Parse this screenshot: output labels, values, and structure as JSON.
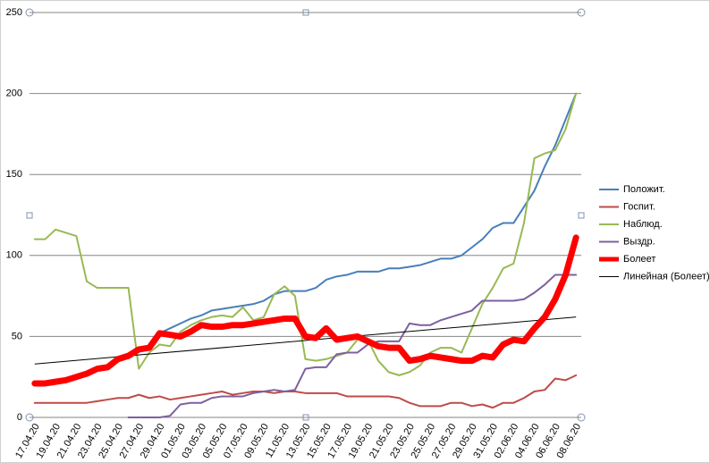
{
  "chart_data": {
    "type": "line",
    "categories": [
      "17.04.20",
      null,
      "19.04.20",
      null,
      "21.04.20",
      null,
      "23.04.20",
      null,
      "25.04.20",
      null,
      "27.04.20",
      null,
      "29.04.20",
      null,
      "01.05.20",
      null,
      "03.05.20",
      null,
      "05.05.20",
      null,
      "07.05.20",
      null,
      "09.05.20",
      null,
      "11.05.20",
      null,
      "13.05.20",
      null,
      "15.05.20",
      null,
      "17.05.20",
      null,
      "19.05.20",
      null,
      "21.05.20",
      null,
      "23.05.20",
      null,
      "25.05.20",
      null,
      "27.05.20",
      null,
      "29.05.20",
      null,
      "31.05.20",
      null,
      "02.06.20",
      null,
      "04.06.20",
      null,
      "06.06.20",
      null,
      "08.06.20"
    ],
    "series": [
      {
        "name": "Положит.",
        "color": "#4a7ebb",
        "width": 2,
        "values": [
          21,
          21,
          22,
          23,
          25,
          27,
          30,
          31,
          36,
          38,
          42,
          43,
          52,
          55,
          58,
          61,
          63,
          66,
          67,
          68,
          69,
          70,
          72,
          76,
          78,
          78,
          78,
          80,
          85,
          87,
          88,
          90,
          90,
          90,
          92,
          92,
          93,
          94,
          96,
          98,
          98,
          100,
          105,
          110,
          117,
          120,
          120,
          130,
          140,
          155,
          168,
          184,
          200
        ]
      },
      {
        "name": "Госпит.",
        "color": "#be4b48",
        "width": 2,
        "values": [
          9,
          9,
          9,
          9,
          9,
          9,
          10,
          11,
          12,
          12,
          14,
          12,
          13,
          11,
          12,
          13,
          14,
          15,
          16,
          14,
          15,
          16,
          16,
          15,
          16,
          16,
          15,
          15,
          15,
          15,
          13,
          13,
          13,
          13,
          13,
          12,
          9,
          7,
          7,
          7,
          9,
          9,
          7,
          8,
          6,
          9,
          9,
          12,
          16,
          17,
          24,
          23,
          26
        ]
      },
      {
        "name": "Наблюд.",
        "color": "#98b954",
        "width": 2,
        "values": [
          110,
          110,
          116,
          114,
          112,
          84,
          80,
          80,
          80,
          80,
          30,
          40,
          45,
          44,
          53,
          57,
          60,
          62,
          63,
          62,
          68,
          60,
          62,
          76,
          81,
          75,
          36,
          35,
          36,
          38,
          40,
          48,
          48,
          35,
          28,
          26,
          28,
          32,
          40,
          43,
          43,
          40,
          55,
          70,
          80,
          92,
          95,
          120,
          160,
          163,
          165,
          178,
          200
        ]
      },
      {
        "name": "Выздр.",
        "color": "#7d60a0",
        "width": 2,
        "values": [
          null,
          null,
          null,
          null,
          null,
          null,
          null,
          null,
          null,
          0,
          0,
          0,
          0,
          1,
          8,
          9,
          9,
          12,
          13,
          13,
          13,
          15,
          16,
          17,
          16,
          17,
          30,
          31,
          31,
          39,
          40,
          40,
          45,
          47,
          47,
          47,
          58,
          57,
          57,
          60,
          62,
          64,
          66,
          72,
          72,
          72,
          72,
          73,
          77,
          82,
          88,
          88,
          88
        ]
      },
      {
        "name": "Болеет",
        "color": "#ff0000",
        "width": 7,
        "values": [
          21,
          21,
          22,
          23,
          25,
          27,
          30,
          31,
          36,
          38,
          42,
          43,
          52,
          51,
          50,
          53,
          57,
          56,
          56,
          57,
          57,
          58,
          59,
          60,
          61,
          61,
          50,
          49,
          55,
          48,
          49,
          50,
          47,
          44,
          43,
          43,
          35,
          36,
          38,
          37,
          36,
          35,
          35,
          38,
          37,
          45,
          48,
          47,
          55,
          62,
          73,
          88,
          111
        ]
      }
    ],
    "trendline": {
      "name": "Линейная (Болеет)",
      "color": "#000000",
      "start": 33,
      "end": 62
    },
    "ylim": [
      0,
      250
    ],
    "yticks": [
      0,
      50,
      100,
      150,
      200,
      250
    ],
    "grid": true,
    "legend": "right"
  }
}
